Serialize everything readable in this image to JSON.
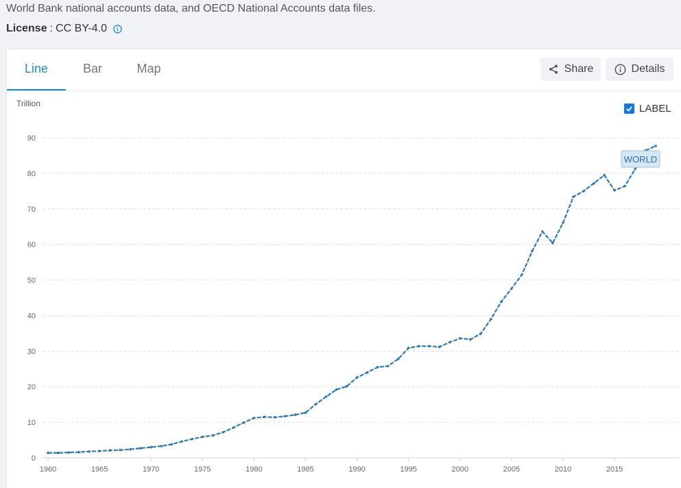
{
  "header": {
    "source_text": "World Bank national accounts data, and OECD National Accounts data files.",
    "license_label": "License",
    "license_value": "CC BY-4.0"
  },
  "tabs": [
    {
      "label": "Line",
      "active": true
    },
    {
      "label": "Bar",
      "active": false
    },
    {
      "label": "Map",
      "active": false
    }
  ],
  "toolbar": {
    "share_label": "Share",
    "details_label": "Details"
  },
  "label_toggle": {
    "label": "LABEL",
    "checked": true
  },
  "colors": {
    "accent": "#1a8bd0",
    "series": "#2c7bb6",
    "checkbox": "#1a73e8"
  },
  "chart_data": {
    "type": "line",
    "ylabel": "Trillion",
    "ylim": [
      0,
      90
    ],
    "yticks": [
      0,
      10,
      20,
      30,
      40,
      50,
      60,
      70,
      80,
      90
    ],
    "xticks": [
      1960,
      1965,
      1970,
      1975,
      1980,
      1985,
      1990,
      1995,
      2000,
      2005,
      2010,
      2015
    ],
    "grid": true,
    "series": [
      {
        "name": "WORLD",
        "x": [
          1960,
          1961,
          1962,
          1963,
          1964,
          1965,
          1966,
          1967,
          1968,
          1969,
          1970,
          1971,
          1972,
          1973,
          1974,
          1975,
          1976,
          1977,
          1978,
          1979,
          1980,
          1981,
          1982,
          1983,
          1984,
          1985,
          1986,
          1987,
          1988,
          1989,
          1990,
          1991,
          1992,
          1993,
          1994,
          1995,
          1996,
          1997,
          1998,
          1999,
          2000,
          2001,
          2002,
          2003,
          2004,
          2005,
          2006,
          2007,
          2008,
          2009,
          2010,
          2011,
          2012,
          2013,
          2014,
          2015,
          2016,
          2017,
          2018,
          2019
        ],
        "values": [
          1.4,
          1.4,
          1.5,
          1.6,
          1.8,
          1.9,
          2.1,
          2.2,
          2.4,
          2.7,
          3.0,
          3.3,
          3.8,
          4.6,
          5.3,
          5.9,
          6.3,
          7.2,
          8.5,
          9.9,
          11.2,
          11.5,
          11.4,
          11.7,
          12.1,
          12.7,
          15.1,
          17.2,
          19.2,
          20.1,
          22.6,
          24.0,
          25.5,
          25.8,
          27.8,
          30.9,
          31.4,
          31.4,
          31.2,
          32.5,
          33.6,
          33.3,
          34.9,
          39.0,
          43.9,
          47.6,
          51.5,
          58.1,
          63.6,
          60.4,
          66.1,
          73.4,
          75.0,
          77.2,
          79.5,
          75.2,
          76.4,
          81.2,
          86.4,
          87.7
        ]
      }
    ]
  }
}
